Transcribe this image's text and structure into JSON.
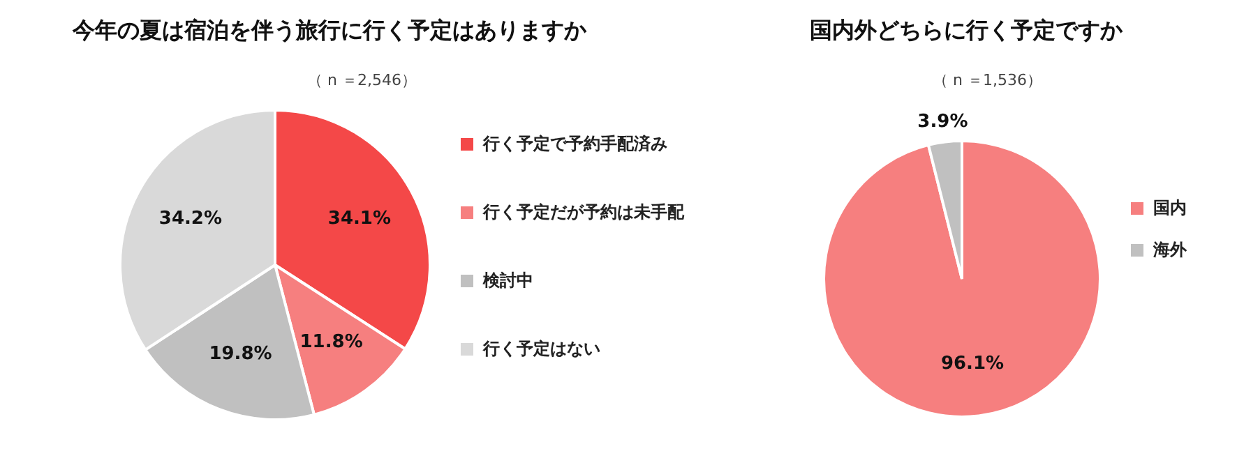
{
  "chart_data": [
    {
      "type": "pie",
      "title": "今年の夏は宿泊を伴う旅行に行く予定はありますか",
      "subtitle": "（ n ＝2,546）",
      "categories": [
        "行く予定で予約手配済み",
        "行く予定だが予約は未手配",
        "検討中",
        "行く予定はない"
      ],
      "values": [
        34.1,
        11.8,
        19.8,
        34.2
      ],
      "colors": [
        "#f44848",
        "#f67f7f",
        "#c0c0c0",
        "#d9d9d9"
      ],
      "value_labels": [
        "34.1%",
        "11.8%",
        "19.8%",
        "34.2%"
      ],
      "legend": "right"
    },
    {
      "type": "pie",
      "title": "国内外どちらに行く予定ですか",
      "subtitle": "（ n ＝1,536）",
      "categories": [
        "国内",
        "海外"
      ],
      "values": [
        96.1,
        3.9
      ],
      "colors": [
        "#f67f7f",
        "#c0c0c0"
      ],
      "value_labels": [
        "96.1%",
        "3.9%"
      ],
      "legend": "right"
    }
  ]
}
